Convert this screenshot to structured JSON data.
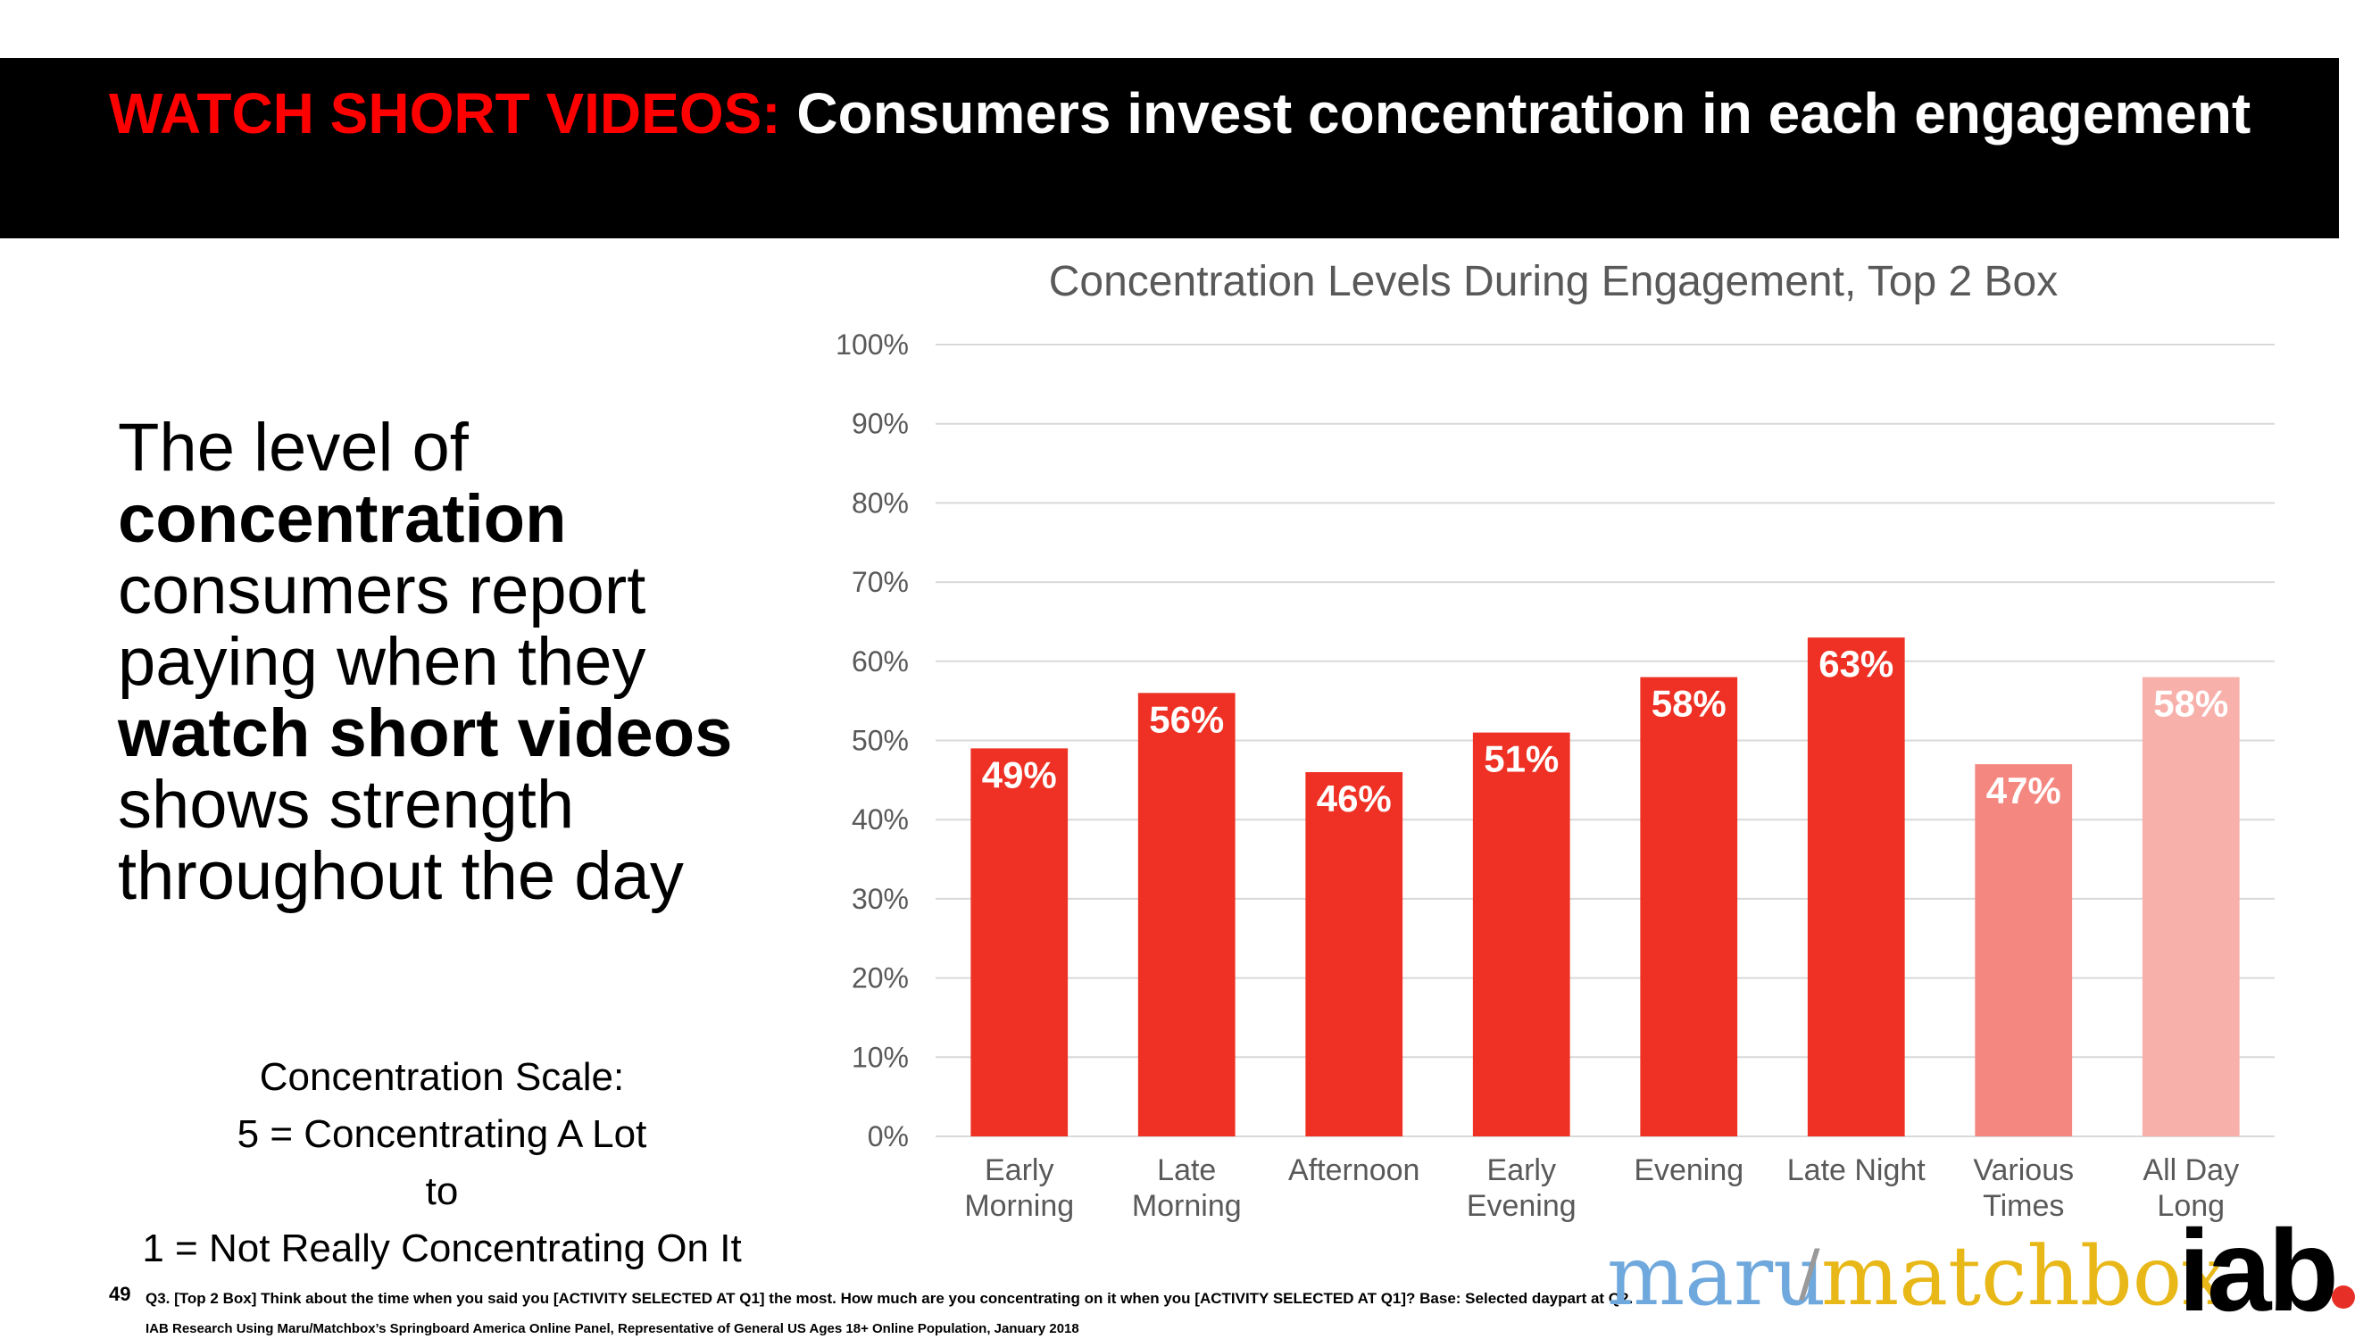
{
  "header": {
    "accent": "WATCH SHORT VIDEOS:",
    "title": "Consumers invest concentration in each engagement"
  },
  "lead": {
    "line1": "The level of",
    "bold1": "concentration",
    "line2": "consumers report",
    "line3": "paying when they",
    "bold2": "watch short videos",
    "line4": "shows strength",
    "line5": "throughout the day"
  },
  "scale": {
    "title": "Concentration Scale:",
    "high": "5 = Concentrating A Lot",
    "to": "to",
    "low": "1 = Not Really Concentrating On It"
  },
  "chart_data": {
    "type": "bar",
    "title": "Concentration Levels During Engagement, Top 2 Box",
    "categories": [
      [
        "Early",
        "Morning"
      ],
      [
        "Late",
        "Morning"
      ],
      [
        "Afternoon"
      ],
      [
        "Early",
        "Evening"
      ],
      [
        "Evening"
      ],
      [
        "Late Night"
      ],
      [
        "Various",
        "Times"
      ],
      [
        "All Day",
        "Long"
      ]
    ],
    "values": [
      49,
      56,
      46,
      51,
      58,
      63,
      47,
      58
    ],
    "value_labels": [
      "49%",
      "56%",
      "46%",
      "51%",
      "58%",
      "63%",
      "47%",
      "58%"
    ],
    "colors": [
      "#ee3124",
      "#ee3124",
      "#ee3124",
      "#ee3124",
      "#ee3124",
      "#ee3124",
      "#f4877f",
      "#f7b0aa"
    ],
    "ylim": [
      0,
      100
    ],
    "yticks": [
      "0%",
      "10%",
      "20%",
      "30%",
      "40%",
      "50%",
      "60%",
      "70%",
      "80%",
      "90%",
      "100%"
    ],
    "grid": true,
    "legend": "none"
  },
  "footer": {
    "page_number": "49",
    "note1": "Q3. [Top 2 Box] Think about the time when you said you [ACTIVITY SELECTED AT Q1] the most.  How much are you concentrating on it when you [ACTIVITY SELECTED AT Q1]? Base: Selected daypart at Q2.",
    "note2": "IAB Research Using Maru/Matchbox’s Springboard America Online Panel, Representative of General US Ages 18+ Online Population, January 2018"
  },
  "logos": {
    "maru": "maru",
    "slash": "/",
    "matchbox": "matchbox",
    "iab": "iab"
  }
}
